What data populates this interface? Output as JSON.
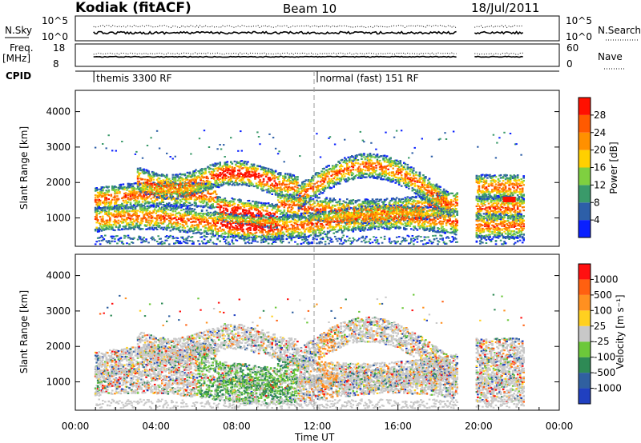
{
  "header": {
    "radar": "Kodiak (fitACF)",
    "beam": "Beam 10",
    "date": "18/Jul/2011"
  },
  "top_panels": {
    "nsky_label": "N.Sky",
    "nsky_ticks": [
      "10^5",
      "10^0"
    ],
    "nsearch_ticks": [
      "10^5",
      "10^0"
    ],
    "nsearch_label": "N.Search",
    "freq_label": "Freq.",
    "freq_unit": "[MHz]",
    "freq_ticks": [
      "18",
      "8"
    ],
    "nave_ticks": [
      "60",
      "0"
    ],
    "nave_label": "Nave",
    "cpid_label": "CPID",
    "cpid_segments": [
      {
        "start_hour": 0.92,
        "text": "themis 3300 RF"
      },
      {
        "start_hour": 12.0,
        "text": "normal (fast) 151 RF"
      }
    ]
  },
  "chart_data": [
    {
      "type": "heatmap",
      "name": "power",
      "ylabel": "Slant Range [km]",
      "yticks": [
        "1000",
        "2000",
        "3000",
        "4000"
      ],
      "ylim": [
        200,
        4600
      ],
      "colorbar_label": "Power [dB]",
      "colorbar_ticks": [
        "4",
        "8",
        "12",
        "16",
        "20",
        "24",
        "28"
      ],
      "colors": [
        "#0a20ff",
        "#2d5fa8",
        "#3a9a6a",
        "#7fd040",
        "#ffd000",
        "#ff9000",
        "#ff5a00",
        "#ff1000"
      ]
    },
    {
      "type": "heatmap",
      "name": "velocity",
      "ylabel": "Slant Range [km]",
      "yticks": [
        "1000",
        "2000",
        "3000",
        "4000"
      ],
      "ylim": [
        200,
        4600
      ],
      "colorbar_label": "Velocity [m s⁻¹]",
      "colorbar_ticks": [
        "1000",
        "500",
        "100",
        "25",
        "-25",
        "-100",
        "-500",
        "-1000"
      ],
      "colors": [
        "#2040c0",
        "#3060a0",
        "#2e8a55",
        "#6cc83a",
        "#c8c8c8",
        "#ffd020",
        "#ff9020",
        "#ff6010",
        "#ff1010"
      ]
    }
  ],
  "xaxis": {
    "ticks": [
      "00:00",
      "04:00",
      "08:00",
      "12:00",
      "16:00",
      "20:00",
      "00:00"
    ],
    "label": "Time UT"
  }
}
